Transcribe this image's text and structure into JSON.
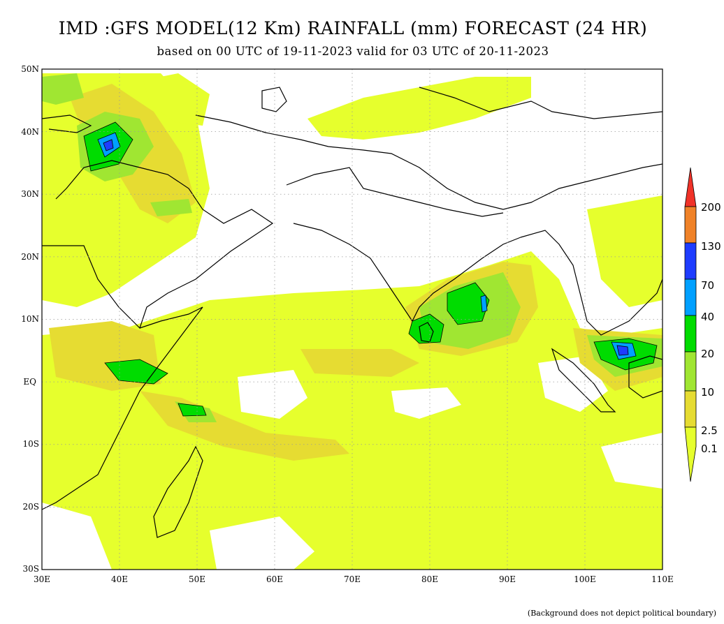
{
  "title": "IMD :GFS MODEL(12 Km) RAINFALL (mm) FORECAST (24 HR)",
  "subtitle": "based on 00 UTC of 19-11-2023 valid for 03 UTC of 20-11-2023",
  "footnote": "(Background does not depict political boundary)",
  "map": {
    "lon_range": [
      30,
      110
    ],
    "lat_range": [
      -30,
      50
    ],
    "lon_ticks": [
      "30E",
      "40E",
      "50E",
      "60E",
      "70E",
      "80E",
      "90E",
      "100E",
      "110E"
    ],
    "lat_ticks": [
      "50N",
      "40N",
      "30N",
      "20N",
      "10N",
      "EQ",
      "10S",
      "20S",
      "30S"
    ],
    "gridlines": true
  },
  "legend": {
    "unit": "mm",
    "levels": [
      {
        "label": "200",
        "color": "#f03228"
      },
      {
        "label": "130",
        "color": "#f08228"
      },
      {
        "label": "70",
        "color": "#1e3cff"
      },
      {
        "label": "40",
        "color": "#00a0ff"
      },
      {
        "label": "20",
        "color": "#00dc00"
      },
      {
        "label": "10",
        "color": "#a0e632"
      },
      {
        "label": "2.5",
        "color": "#e6dc32"
      },
      {
        "label": "0.1",
        "color": "#e6ff2d"
      }
    ]
  },
  "colors": {
    "light_rain": "#e6ff2d",
    "low_rain": "#e6dc32",
    "moderate_rain": "#a0e632",
    "heavy_rain": "#00dc00",
    "very_heavy_rain": "#00a0ff",
    "extreme_rain": "#1e3cff",
    "coastline": "#000000"
  }
}
